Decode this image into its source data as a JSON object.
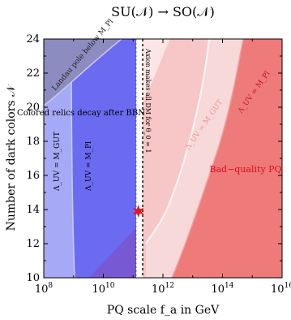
{
  "chart_data": {
    "type": "area",
    "title": "SU(𝒩) → SO(𝒩)",
    "xlabel": "PQ scale f_a in GeV",
    "ylabel": "Number of dark colors 𝒩",
    "x_scale": "log",
    "xlim": [
      100000000.0,
      1e+16
    ],
    "ylim": [
      10,
      24
    ],
    "x_ticks": [
      {
        "value": 100000000.0,
        "base": "10",
        "exp": "8"
      },
      {
        "value": 10000000000.0,
        "base": "10",
        "exp": "10"
      },
      {
        "value": 1000000000000.0,
        "base": "10",
        "exp": "12"
      },
      {
        "value": 100000000000000.0,
        "base": "10",
        "exp": "14"
      },
      {
        "value": 1e+16,
        "base": "10",
        "exp": "16"
      }
    ],
    "y_ticks": [
      10,
      12,
      14,
      16,
      18,
      20,
      22,
      24
    ],
    "grid": false,
    "regions": [
      {
        "name": "Landau pole below M_Pl",
        "label": "Landau pole below M_Pl",
        "color": "#8a8ac4",
        "boundary": [
          [
            100000000.0,
            18.6
          ],
          [
            300000000.0,
            19.8
          ],
          [
            1000000000.0,
            21
          ],
          [
            3000000000.0,
            22.4
          ],
          [
            10000000000.0,
            23.6
          ],
          [
            16000000000.0,
            24
          ]
        ]
      },
      {
        "name": "Colored relics decay after BBN",
        "label": "Colored relics decay after BBN",
        "color": "#6a6af0",
        "x_max_boundary": [
          [
            45000000000.0,
            10
          ],
          [
            45000000000.0,
            24
          ]
        ]
      },
      {
        "name": "Lambda_UV = M_GUT (blue)",
        "label": "Λ_UV = M_GUT",
        "color": "#aab0f5",
        "boundary": [
          [
            2200000000.0,
            10
          ],
          [
            2100000000.0,
            14
          ],
          [
            2000000000.0,
            18
          ],
          [
            1800000000.0,
            22
          ],
          [
            1600000000.0,
            24
          ]
        ]
      },
      {
        "name": "Lambda_UV = M_Pl (blue)",
        "label": "Λ_UV = M_Pl",
        "color": "#8888f0"
      },
      {
        "name": "Axion makes all DM",
        "label": "Axion makes all DM for θ_0 = 1",
        "color": "#000000",
        "x_value": 150000000000.0
      },
      {
        "name": "Lambda_UV = M_GUT (red)",
        "label": "Λ_UV = M_GUT",
        "color": "#f7c6c6",
        "boundary": [
          [
            180000000000.0,
            10
          ],
          [
            180000000000.0,
            14
          ],
          [
            200000000000.0,
            15
          ],
          [
            800000000000.0,
            18
          ],
          [
            3000000000000.0,
            21.5
          ],
          [
            5000000000000.0,
            24
          ]
        ]
      },
      {
        "name": "Lambda_UV = M_Pl (red)",
        "label": "Λ_UV = M_Pl",
        "color": "#f38f8f",
        "boundary": [
          [
            1000000000000.0,
            10
          ],
          [
            4000000000000.0,
            12
          ],
          [
            20000000000000.0,
            16
          ],
          [
            100000000000000.0,
            19
          ],
          [
            400000000000000.0,
            22
          ],
          [
            1000000000000000.0,
            24
          ]
        ]
      },
      {
        "name": "Bad-quality PQ",
        "label": "Bad−quality PQ",
        "color": "#ef7a7a"
      }
    ],
    "markers": [
      {
        "name": "star",
        "x": 150000000000.0,
        "y": 13.9,
        "color": "#e8141e"
      }
    ]
  }
}
